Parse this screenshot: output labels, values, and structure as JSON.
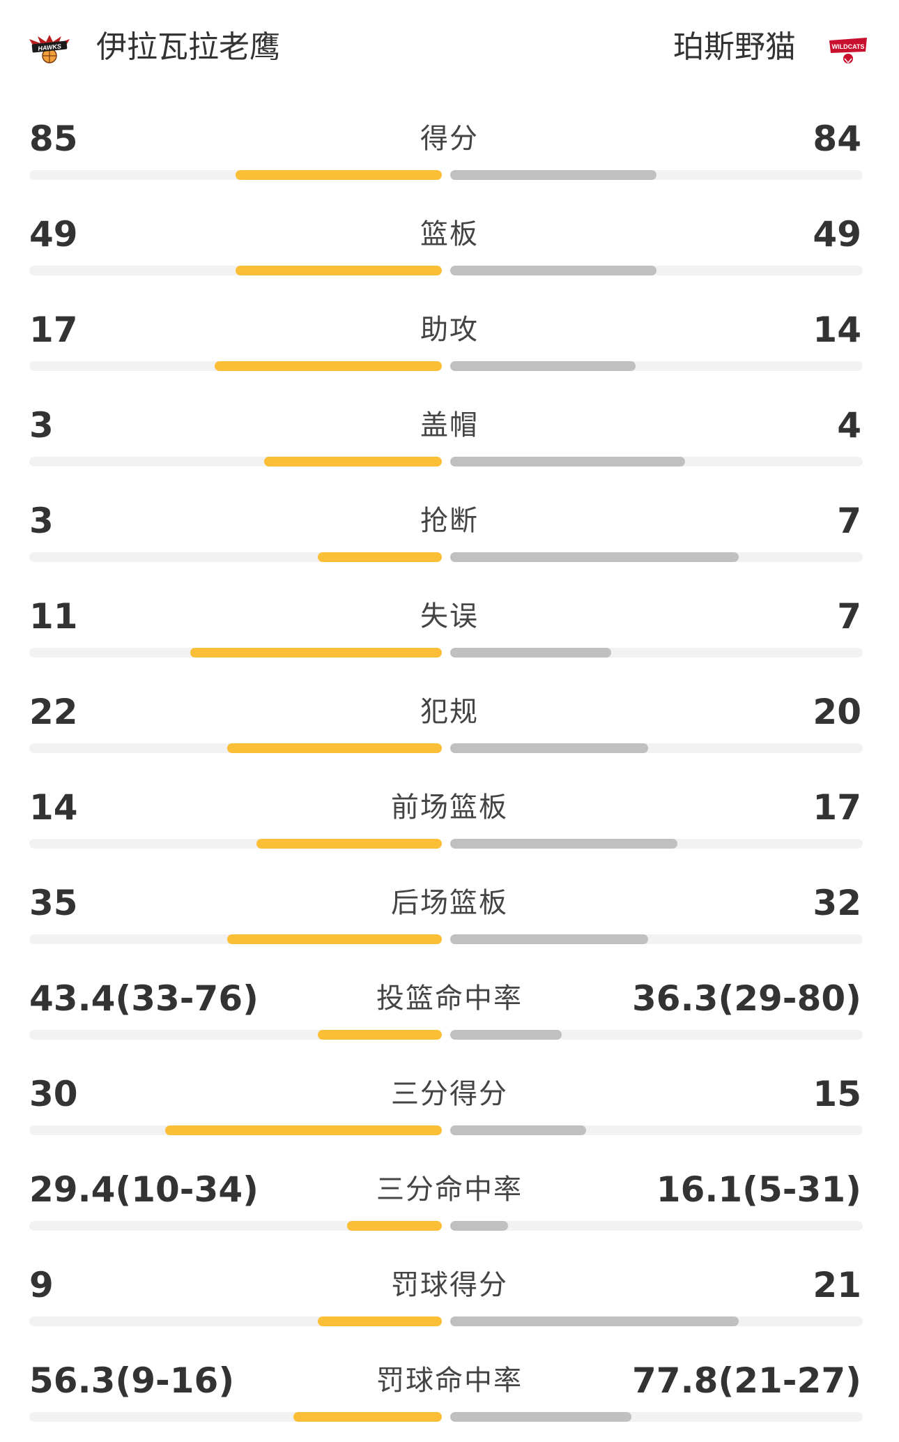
{
  "home": {
    "name": "伊拉瓦拉老鹰",
    "logo_icon": "hawks-logo-icon",
    "logo_text": "HAWKS",
    "color": "#fbbf37"
  },
  "away": {
    "name": "珀斯野猫",
    "logo_icon": "wildcats-logo-icon",
    "logo_text": "WILDCATS",
    "color": "#c0c0c0"
  },
  "stats": [
    {
      "label": "得分",
      "home": "85",
      "away": "84",
      "home_fill": 0.5,
      "away_fill": 0.5
    },
    {
      "label": "篮板",
      "home": "49",
      "away": "49",
      "home_fill": 0.5,
      "away_fill": 0.5
    },
    {
      "label": "助攻",
      "home": "17",
      "away": "14",
      "home_fill": 0.55,
      "away_fill": 0.45
    },
    {
      "label": "盖帽",
      "home": "3",
      "away": "4",
      "home_fill": 0.43,
      "away_fill": 0.57
    },
    {
      "label": "抢断",
      "home": "3",
      "away": "7",
      "home_fill": 0.3,
      "away_fill": 0.7
    },
    {
      "label": "失误",
      "home": "11",
      "away": "7",
      "home_fill": 0.61,
      "away_fill": 0.39
    },
    {
      "label": "犯规",
      "home": "22",
      "away": "20",
      "home_fill": 0.52,
      "away_fill": 0.48
    },
    {
      "label": "前场篮板",
      "home": "14",
      "away": "17",
      "home_fill": 0.45,
      "away_fill": 0.55
    },
    {
      "label": "后场篮板",
      "home": "35",
      "away": "32",
      "home_fill": 0.52,
      "away_fill": 0.48
    },
    {
      "label": "投篮命中率",
      "home": "43.4(33-76)",
      "away": "36.3(29-80)",
      "home_fill": 0.3,
      "away_fill": 0.27
    },
    {
      "label": "三分得分",
      "home": "30",
      "away": "15",
      "home_fill": 0.67,
      "away_fill": 0.33
    },
    {
      "label": "三分命中率",
      "home": "29.4(10-34)",
      "away": "16.1(5-31)",
      "home_fill": 0.23,
      "away_fill": 0.14
    },
    {
      "label": "罚球得分",
      "home": "9",
      "away": "21",
      "home_fill": 0.3,
      "away_fill": 0.7
    },
    {
      "label": "罚球命中率",
      "home": "56.3(9-16)",
      "away": "77.8(21-27)",
      "home_fill": 0.36,
      "away_fill": 0.44
    }
  ]
}
